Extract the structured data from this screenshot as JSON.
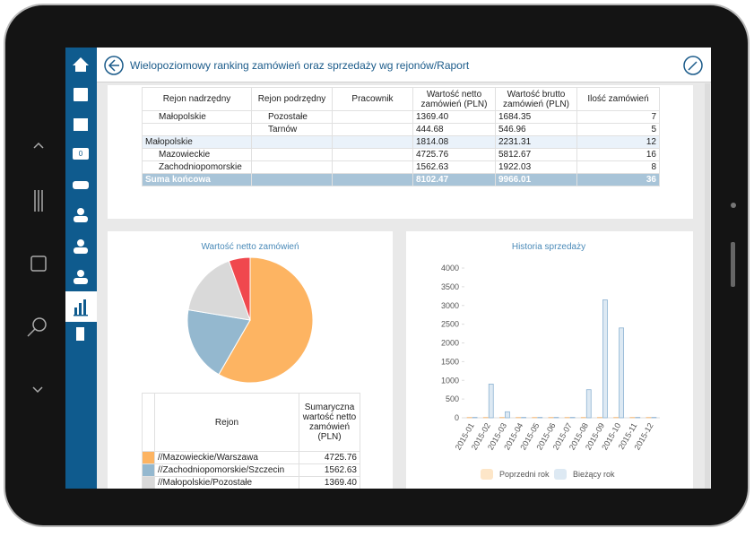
{
  "header": {
    "title": "Wielopoziomowy ranking zamówień oraz sprzedaży wg rejonów/Raport"
  },
  "sidebar": {
    "badge": "0"
  },
  "table": {
    "columns": [
      "Rejon nadrzędny",
      "Rejon podrzędny",
      "Pracownik",
      "Wartość netto zamówień (PLN)",
      "Wartość brutto zamówień (PLN)",
      "Ilość zamówień"
    ],
    "rows": [
      [
        "Małopolskie",
        "Pozostałe",
        null,
        "1369.40",
        "1684.35",
        7
      ],
      [
        null,
        "Tarnów",
        null,
        "444.68",
        "546.96",
        5
      ],
      [
        "Małopolskie",
        null,
        null,
        "1814.08",
        "2231.31",
        12
      ],
      [
        "Mazowieckie",
        null,
        null,
        "4725.76",
        "5812.67",
        16
      ],
      [
        "Zachodniopomorskie",
        null,
        null,
        "1562.63",
        "1922.03",
        8
      ],
      [
        "Suma końcowa",
        null,
        null,
        "8102.47",
        "9966.01",
        36
      ]
    ]
  },
  "chart_data": [
    {
      "type": "pie",
      "title": "Wartość netto zamówień",
      "legend_columns": [
        "Rejon",
        "Sumaryczna wartość netto zamówień (PLN)"
      ],
      "categories": [
        "//Mazowieckie/Warszawa",
        "//Zachodniopomorskie/Szczecin",
        "//Małopolskie/Pozostałe",
        null
      ],
      "values": [
        4725.76,
        1562.63,
        1369.4,
        444.68
      ],
      "value_labels": [
        "4725.76",
        "1562.63",
        "1369.40",
        null
      ],
      "colors": [
        "#fdb462",
        "#94b8cf",
        "#d9d9d9",
        "#f0484e"
      ]
    },
    {
      "type": "bar",
      "title": "Historia sprzedaży",
      "categories": [
        "2015-01",
        "2015-02",
        "2015-03",
        "2015-04",
        "2015-05",
        "2015-06",
        "2015-07",
        "2015-08",
        "2015-09",
        "2015-10",
        "2015-11",
        "2015-12"
      ],
      "series": [
        {
          "name": "Poprzedni rok",
          "color": "#fde6c8",
          "stroke": "#f3bf85",
          "values": [
            10,
            10,
            10,
            10,
            10,
            10,
            10,
            10,
            10,
            10,
            10,
            10
          ]
        },
        {
          "name": "Bieżący rok",
          "color": "#dde9f3",
          "stroke": "#8db3d3",
          "values": [
            10,
            900,
            160,
            10,
            10,
            10,
            10,
            750,
            3150,
            2400,
            10,
            10
          ]
        }
      ],
      "ylim": [
        0,
        4000
      ],
      "yticks": [
        0,
        500,
        1000,
        1500,
        2000,
        2500,
        3000,
        3500,
        4000
      ]
    }
  ]
}
